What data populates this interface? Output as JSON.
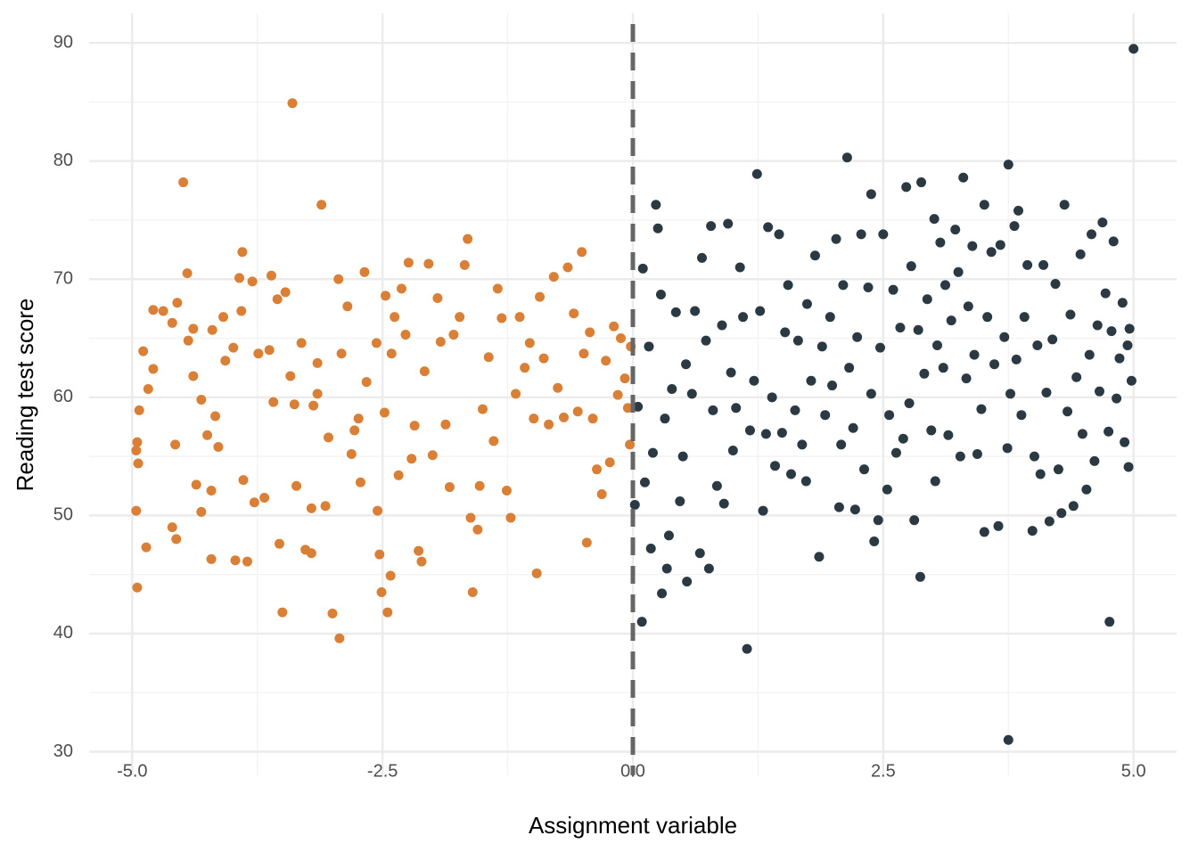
{
  "chart_data": {
    "type": "scatter",
    "x_label": "Assignment variable",
    "y_label": "Reading test score",
    "xlim": [
      -5.43,
      5.43
    ],
    "ylim": [
      28,
      92.5
    ],
    "xticks": [
      {
        "value": -5,
        "label": "-5.0"
      },
      {
        "value": -2.5,
        "label": "-2.5"
      },
      {
        "value": 0,
        "label": "0.0"
      },
      {
        "value": 2.5,
        "label": "2.5"
      },
      {
        "value": 5,
        "label": "5.0"
      }
    ],
    "yticks": [
      30,
      40,
      50,
      60,
      70,
      80,
      90
    ],
    "xminorticks": [
      -3.75,
      -1.25,
      1.25,
      3.75
    ],
    "yminorticks": [
      35,
      45,
      55,
      65,
      75,
      85
    ],
    "grid": true,
    "cutoff": 0,
    "cutoff_color": "#666666",
    "series": [
      {
        "color": "#d97f36",
        "x": [
          -4.96,
          -4.95,
          -4.96,
          -4.95,
          -4.93,
          -4.94,
          -4.89,
          -4.86,
          -4.84,
          -4.79,
          -4.79,
          -4.69,
          -4.6,
          -4.6,
          -4.57,
          -4.55,
          -4.56,
          -4.49,
          -4.45,
          -4.44,
          -4.39,
          -4.39,
          -4.36,
          -4.31,
          -4.31,
          -4.25,
          -4.21,
          -4.21,
          -4.2,
          -4.17,
          -4.14,
          -4.09,
          -4.07,
          -3.99,
          -3.97,
          -3.93,
          -3.9,
          -3.91,
          -3.89,
          -3.85,
          -3.8,
          -3.78,
          -3.74,
          -3.68,
          -3.63,
          -3.61,
          -3.59,
          -3.55,
          -3.53,
          -3.5,
          -3.47,
          -3.42,
          -3.4,
          -3.38,
          -3.36,
          -3.31,
          -3.27,
          -3.21,
          -3.21,
          -3.19,
          -3.15,
          -3.15,
          -3.11,
          -3.07,
          -3.04,
          -3.0,
          -2.94,
          -2.93,
          -2.91,
          -2.85,
          -2.81,
          -2.78,
          -2.74,
          -2.72,
          -2.68,
          -2.66,
          -2.56,
          -2.55,
          -2.53,
          -2.51,
          -2.48,
          -2.47,
          -2.45,
          -2.42,
          -2.41,
          -2.38,
          -2.34,
          -2.31,
          -2.27,
          -2.24,
          -2.21,
          -2.18,
          -2.14,
          -2.11,
          -2.08,
          -2.04,
          -2.0,
          -1.95,
          -1.92,
          -1.87,
          -1.83,
          -1.79,
          -1.73,
          -1.68,
          -1.65,
          -1.62,
          -1.6,
          -1.55,
          -1.53,
          -1.5,
          -1.44,
          -1.39,
          -1.35,
          -1.31,
          -1.26,
          -1.22,
          -1.17,
          -1.13,
          -1.08,
          -1.03,
          -0.99,
          -0.96,
          -0.93,
          -0.89,
          -0.84,
          -0.79,
          -0.75,
          -0.69,
          -0.65,
          -0.59,
          -0.55,
          -0.51,
          -0.49,
          -0.46,
          -0.43,
          -0.4,
          -0.36,
          -0.31,
          -0.27,
          -0.23,
          -0.19,
          -0.15,
          -0.12,
          -0.08,
          -0.05,
          -0.03,
          -0.02
        ],
        "values": [
          55.5,
          56.2,
          50.4,
          43.9,
          58.9,
          54.4,
          63.9,
          47.3,
          60.7,
          62.4,
          67.4,
          67.3,
          49.0,
          66.3,
          56.0,
          68.0,
          48.0,
          78.2,
          70.5,
          64.8,
          65.8,
          61.8,
          52.6,
          50.3,
          59.8,
          56.8,
          46.3,
          52.1,
          65.7,
          58.4,
          55.8,
          66.8,
          63.1,
          64.2,
          46.2,
          70.1,
          72.3,
          67.3,
          53.0,
          46.1,
          69.8,
          51.1,
          63.7,
          51.5,
          64.0,
          70.3,
          59.6,
          68.3,
          47.6,
          41.8,
          68.9,
          61.8,
          84.9,
          59.4,
          52.5,
          64.6,
          47.1,
          46.8,
          50.6,
          59.3,
          62.9,
          60.3,
          76.3,
          50.8,
          56.6,
          41.7,
          70.0,
          39.6,
          63.7,
          67.7,
          55.2,
          57.2,
          58.2,
          52.8,
          70.6,
          61.3,
          64.6,
          50.4,
          46.7,
          43.5,
          58.7,
          68.6,
          41.8,
          44.9,
          63.7,
          66.8,
          53.4,
          69.2,
          65.3,
          71.4,
          54.8,
          57.6,
          47.0,
          46.1,
          62.2,
          71.3,
          55.1,
          68.4,
          64.7,
          57.7,
          52.4,
          65.3,
          66.8,
          71.2,
          73.4,
          49.8,
          43.5,
          48.8,
          52.5,
          59.0,
          63.4,
          56.3,
          69.2,
          66.7,
          52.1,
          49.8,
          60.3,
          66.8,
          62.5,
          64.6,
          58.2,
          45.1,
          68.5,
          63.3,
          57.7,
          70.2,
          60.8,
          58.3,
          71.0,
          67.1,
          58.8,
          72.3,
          63.7,
          47.7,
          65.5,
          58.2,
          53.9,
          51.8,
          63.1,
          54.5,
          66.0,
          60.2,
          65.0,
          61.6,
          59.1,
          56.0,
          64.3
        ]
      },
      {
        "color": "#2b3a42",
        "x": [
          0.02,
          0.05,
          0.09,
          0.1,
          0.12,
          0.16,
          0.18,
          0.2,
          0.23,
          0.25,
          0.28,
          0.29,
          0.32,
          0.34,
          0.36,
          0.39,
          0.43,
          0.47,
          0.5,
          0.53,
          0.54,
          0.59,
          0.62,
          0.67,
          0.69,
          0.73,
          0.76,
          0.78,
          0.8,
          0.84,
          0.89,
          0.91,
          0.95,
          0.98,
          1.0,
          1.03,
          1.07,
          1.1,
          1.14,
          1.17,
          1.21,
          1.24,
          1.27,
          1.3,
          1.33,
          1.35,
          1.39,
          1.42,
          1.46,
          1.49,
          1.52,
          1.55,
          1.58,
          1.62,
          1.65,
          1.69,
          1.73,
          1.74,
          1.78,
          1.82,
          1.86,
          1.89,
          1.92,
          1.97,
          1.99,
          2.03,
          2.06,
          2.08,
          2.1,
          2.14,
          2.16,
          2.2,
          2.22,
          2.24,
          2.28,
          2.31,
          2.35,
          2.38,
          2.38,
          2.41,
          2.45,
          2.47,
          2.5,
          2.54,
          2.56,
          2.6,
          2.63,
          2.67,
          2.7,
          2.73,
          2.76,
          2.78,
          2.81,
          2.85,
          2.87,
          2.88,
          2.91,
          2.94,
          2.98,
          3.01,
          3.02,
          3.04,
          3.07,
          3.1,
          3.12,
          3.15,
          3.18,
          3.22,
          3.25,
          3.27,
          3.3,
          3.33,
          3.35,
          3.39,
          3.41,
          3.44,
          3.48,
          3.51,
          3.51,
          3.54,
          3.58,
          3.61,
          3.65,
          3.67,
          3.71,
          3.74,
          3.75,
          3.75,
          3.77,
          3.81,
          3.83,
          3.85,
          3.88,
          3.91,
          3.94,
          3.99,
          4.01,
          4.04,
          4.07,
          4.1,
          4.13,
          4.16,
          4.19,
          4.22,
          4.25,
          4.28,
          4.31,
          4.34,
          4.37,
          4.4,
          4.43,
          4.47,
          4.49,
          4.53,
          4.56,
          4.58,
          4.61,
          4.64,
          4.66,
          4.69,
          4.72,
          4.75,
          4.76,
          4.78,
          4.8,
          4.83,
          4.86,
          4.89,
          4.91,
          4.94,
          4.96,
          4.95,
          4.98,
          5.0
        ],
        "values": [
          50.9,
          59.2,
          41.0,
          70.9,
          52.8,
          64.3,
          47.2,
          55.3,
          76.3,
          74.3,
          68.7,
          43.4,
          58.2,
          45.5,
          48.3,
          60.7,
          67.2,
          51.2,
          55.0,
          62.8,
          44.4,
          60.3,
          67.3,
          46.8,
          71.8,
          64.8,
          45.5,
          74.5,
          58.9,
          52.5,
          66.1,
          51.0,
          74.7,
          62.1,
          55.5,
          59.1,
          71.0,
          66.8,
          38.7,
          57.2,
          61.4,
          78.9,
          67.3,
          50.4,
          56.9,
          74.4,
          60.0,
          54.2,
          73.8,
          57.0,
          65.5,
          69.5,
          53.5,
          58.9,
          64.8,
          56.0,
          52.9,
          67.9,
          61.4,
          72.0,
          46.5,
          64.3,
          58.5,
          66.8,
          61.0,
          73.4,
          50.7,
          56.0,
          69.5,
          80.3,
          62.5,
          57.4,
          50.5,
          65.1,
          73.8,
          53.9,
          69.3,
          60.3,
          77.2,
          47.8,
          49.6,
          64.2,
          73.8,
          52.2,
          58.5,
          69.1,
          55.3,
          65.9,
          56.5,
          77.8,
          59.5,
          71.1,
          49.6,
          65.7,
          44.8,
          78.2,
          62.0,
          68.3,
          57.2,
          75.1,
          52.9,
          64.4,
          73.1,
          62.5,
          69.5,
          56.8,
          66.5,
          74.2,
          70.6,
          55.0,
          78.6,
          61.6,
          67.7,
          72.8,
          63.6,
          55.2,
          59.0,
          48.6,
          76.3,
          66.8,
          72.3,
          62.8,
          49.1,
          72.9,
          65.1,
          55.7,
          79.7,
          31.0,
          60.3,
          74.5,
          63.2,
          75.8,
          58.5,
          66.8,
          71.2,
          48.7,
          55.0,
          64.4,
          53.5,
          71.2,
          60.4,
          49.5,
          64.9,
          69.6,
          53.9,
          50.2,
          76.3,
          58.8,
          67.0,
          50.8,
          61.7,
          72.1,
          56.9,
          52.2,
          63.6,
          73.8,
          54.6,
          66.1,
          60.5,
          74.8,
          68.8,
          57.1,
          41.0,
          65.6,
          73.2,
          59.9,
          63.3,
          68.0,
          56.2,
          64.4,
          65.8,
          54.1,
          61.4,
          89.5
        ]
      }
    ]
  }
}
